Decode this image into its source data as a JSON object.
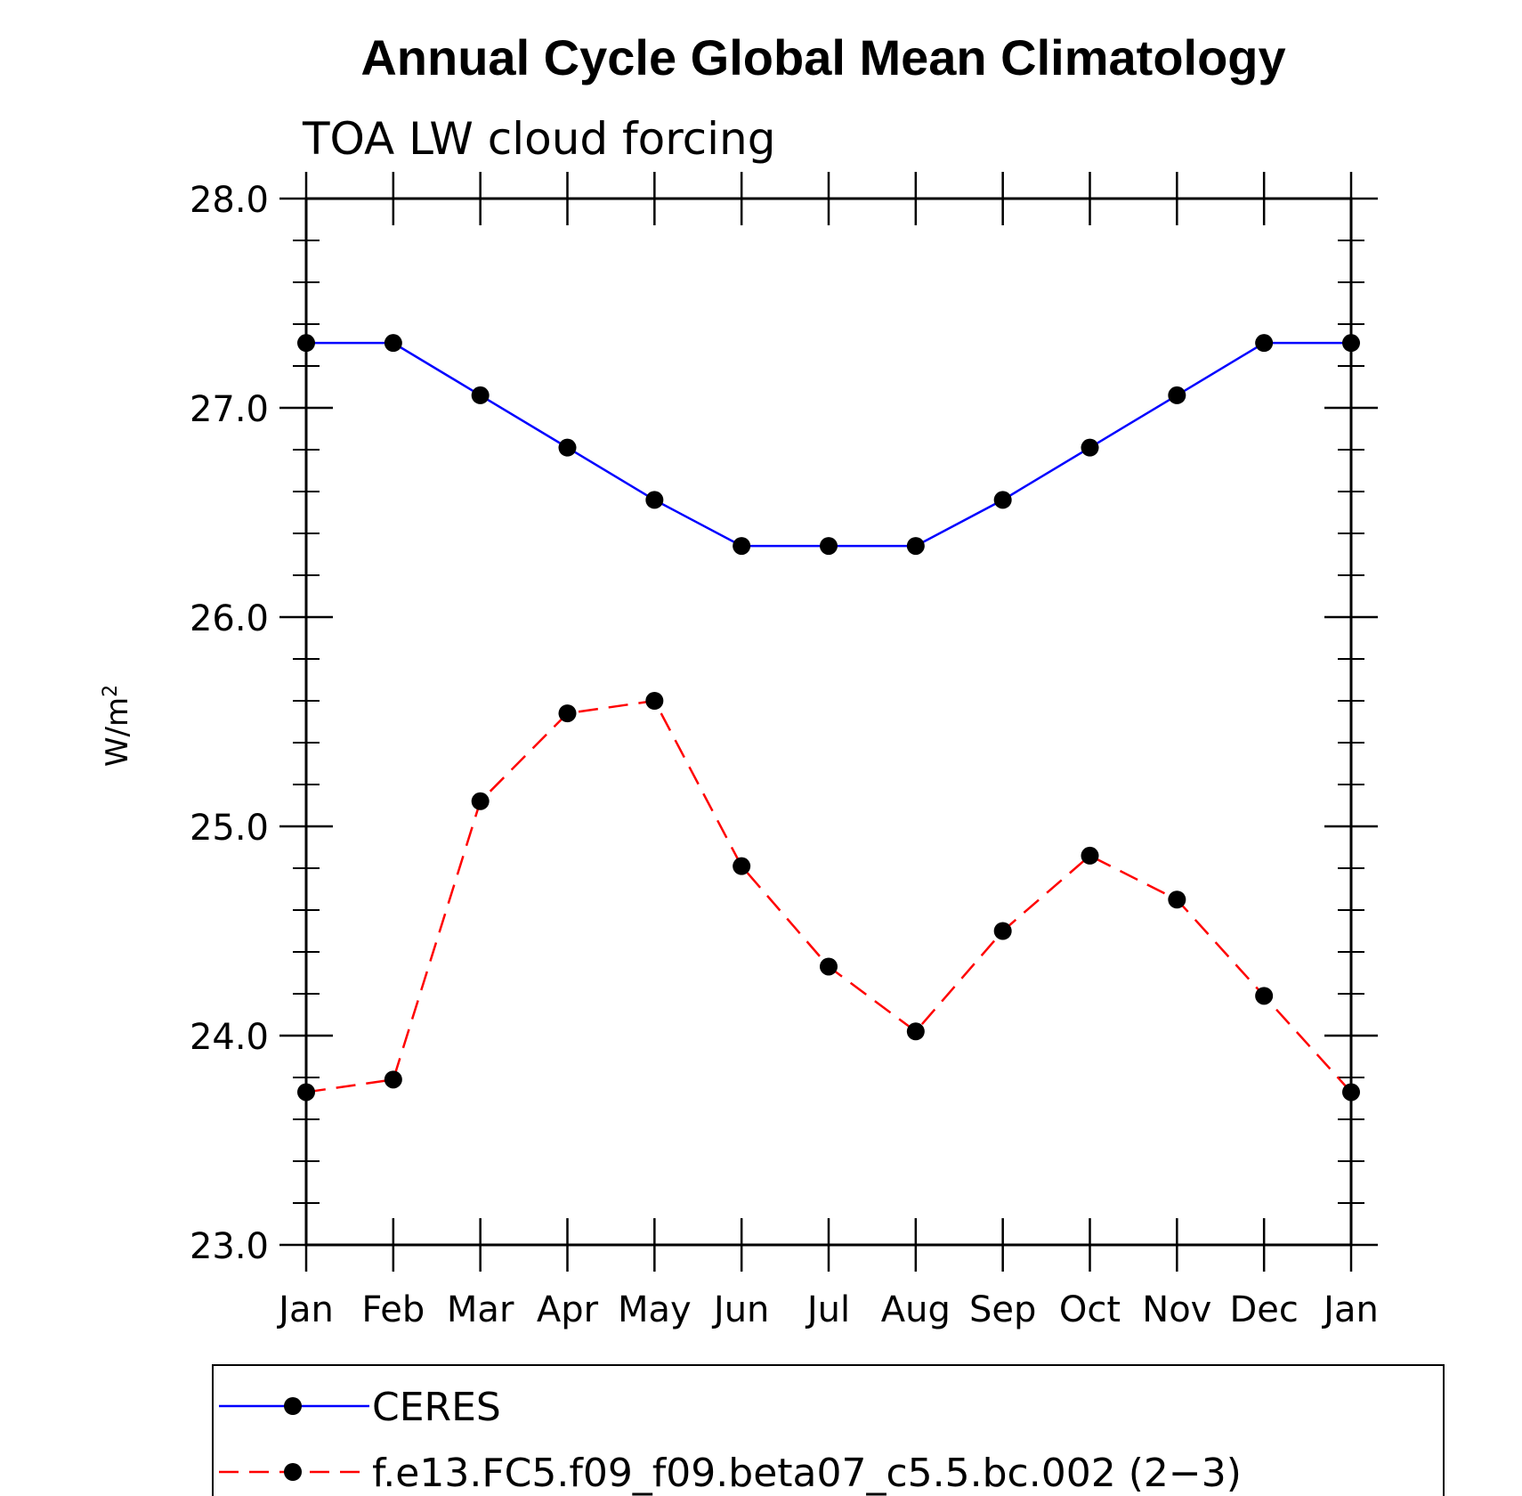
{
  "chart_data": {
    "type": "line",
    "title": "Annual Cycle Global Mean Climatology",
    "subtitle": "TOA LW cloud forcing",
    "ylabel": "W/m",
    "ylabel_superscript": "2",
    "xlabel": "",
    "categories": [
      "Jan",
      "Feb",
      "Mar",
      "Apr",
      "May",
      "Jun",
      "Jul",
      "Aug",
      "Sep",
      "Oct",
      "Nov",
      "Dec",
      "Jan"
    ],
    "ylim": [
      23.0,
      28.0
    ],
    "yticks": [
      "23.0",
      "24.0",
      "25.0",
      "26.0",
      "27.0",
      "28.0"
    ],
    "grid": false,
    "legend_position": "bottom",
    "series": [
      {
        "name": "CERES",
        "color": "#0000ff",
        "dash": "solid",
        "marker": "filled-circle",
        "values": [
          27.31,
          27.31,
          27.06,
          26.81,
          26.56,
          26.34,
          26.34,
          26.34,
          26.56,
          26.81,
          27.06,
          27.31,
          27.31
        ]
      },
      {
        "name": "f.e13.FC5.f09_f09.beta07_c5.5.bc.002 (2−3)",
        "color": "#ff0000",
        "dash": "dashed",
        "marker": "filled-circle",
        "values": [
          23.73,
          23.79,
          25.12,
          25.54,
          25.6,
          24.81,
          24.33,
          24.02,
          24.5,
          24.86,
          24.65,
          24.19,
          23.73
        ]
      }
    ]
  }
}
